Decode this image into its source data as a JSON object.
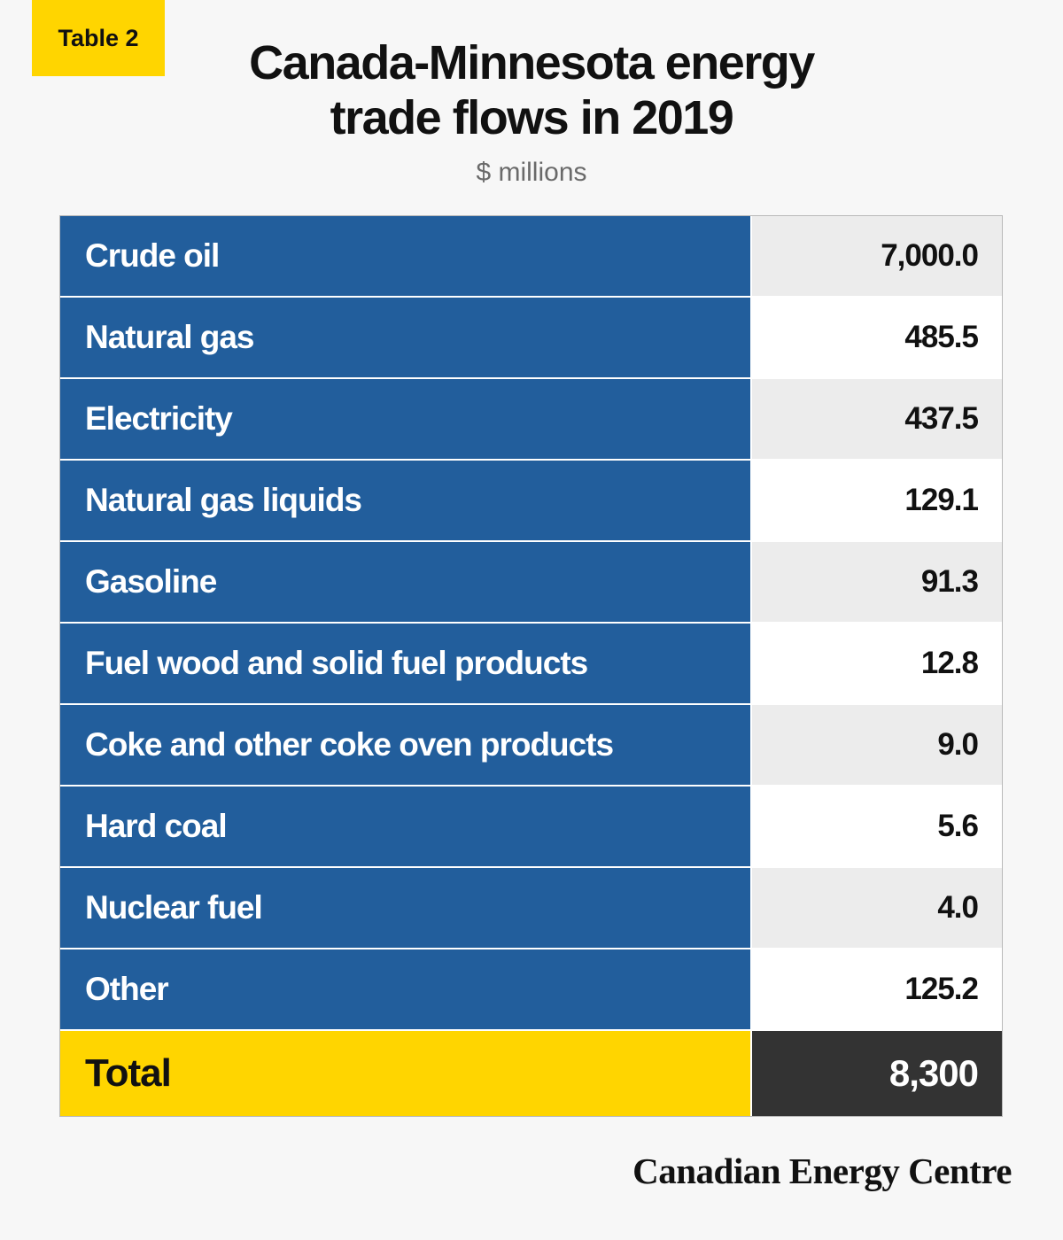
{
  "badge": "Table 2",
  "title_lines": [
    "Canada-Minnesota energy",
    "trade flows in 2019"
  ],
  "subtitle": "$ millions",
  "chart_data": {
    "type": "table",
    "title": "Canada-Minnesota energy trade flows in 2019",
    "unit": "$ millions",
    "rows": [
      {
        "label": "Crude oil",
        "value": "7,000.0"
      },
      {
        "label": "Natural gas",
        "value": "485.5"
      },
      {
        "label": "Electricity",
        "value": "437.5"
      },
      {
        "label": "Natural gas liquids",
        "value": "129.1"
      },
      {
        "label": "Gasoline",
        "value": "91.3"
      },
      {
        "label": "Fuel wood and solid fuel products",
        "value": "12.8"
      },
      {
        "label": "Coke and other coke oven products",
        "value": "9.0"
      },
      {
        "label": "Hard coal",
        "value": "5.6"
      },
      {
        "label": "Nuclear fuel",
        "value": "4.0"
      },
      {
        "label": "Other",
        "value": "125.2"
      }
    ],
    "total": {
      "label": "Total",
      "value": "8,300"
    }
  },
  "brand": "Canadian Energy Centre",
  "colors": {
    "label_bg": "#225e9c",
    "accent_yellow": "#ffd500",
    "total_value_bg": "#333333"
  }
}
